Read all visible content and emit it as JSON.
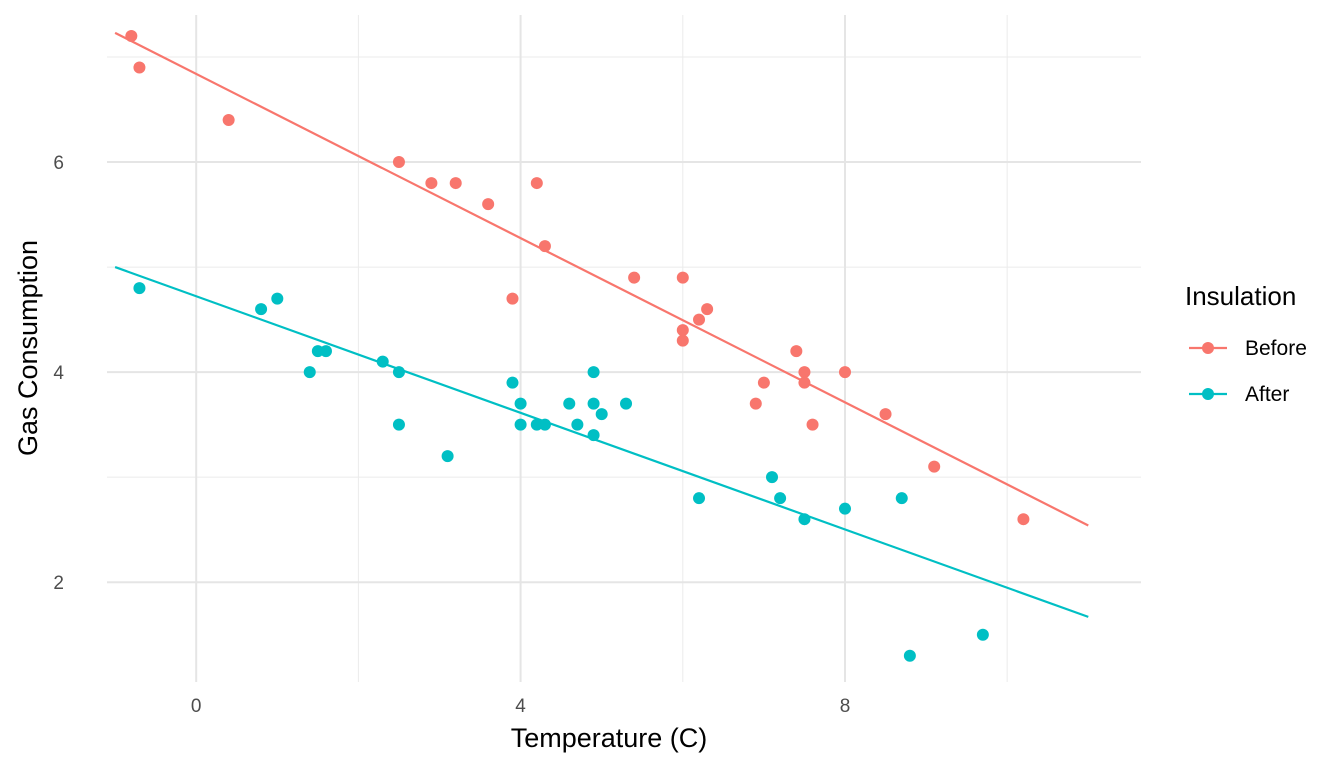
{
  "chart_data": {
    "type": "scatter",
    "xlabel": "Temperature (C)",
    "ylabel": "Gas Consumption",
    "xlim": [
      -1.1,
      11.65
    ],
    "ylim": [
      1.05,
      7.4
    ],
    "x_ticks": [
      0,
      4,
      8
    ],
    "x_tick_labels": [
      "0",
      "4",
      "8"
    ],
    "x_minor_ticks": [
      2,
      6,
      10
    ],
    "y_ticks": [
      2,
      4,
      6
    ],
    "y_tick_labels": [
      "2",
      "4",
      "6"
    ],
    "y_minor_ticks": [
      3,
      5,
      7
    ],
    "grid": true,
    "legend": {
      "title": "Insulation",
      "position": "right"
    },
    "series": [
      {
        "name": "Before",
        "color": "#F8766D",
        "points": [
          [
            -0.8,
            7.2
          ],
          [
            -0.7,
            6.9
          ],
          [
            0.4,
            6.4
          ],
          [
            2.5,
            6.0
          ],
          [
            2.9,
            5.8
          ],
          [
            3.2,
            5.8
          ],
          [
            3.6,
            5.6
          ],
          [
            3.9,
            4.7
          ],
          [
            4.2,
            5.8
          ],
          [
            4.3,
            5.2
          ],
          [
            5.4,
            4.9
          ],
          [
            6.0,
            4.9
          ],
          [
            6.0,
            4.3
          ],
          [
            6.0,
            4.4
          ],
          [
            6.2,
            4.5
          ],
          [
            6.3,
            4.6
          ],
          [
            6.9,
            3.7
          ],
          [
            7.0,
            3.9
          ],
          [
            7.4,
            4.2
          ],
          [
            7.5,
            4.0
          ],
          [
            7.5,
            3.9
          ],
          [
            7.6,
            3.5
          ],
          [
            8.0,
            4.0
          ],
          [
            8.5,
            3.6
          ],
          [
            9.1,
            3.1
          ],
          [
            10.2,
            2.6
          ]
        ],
        "fit": {
          "x": [
            -1.0,
            11.0
          ],
          "y": [
            7.23,
            2.54
          ]
        }
      },
      {
        "name": "After",
        "color": "#00BFC4",
        "points": [
          [
            -0.7,
            4.8
          ],
          [
            0.8,
            4.6
          ],
          [
            1.0,
            4.7
          ],
          [
            1.4,
            4.0
          ],
          [
            1.5,
            4.2
          ],
          [
            1.6,
            4.2
          ],
          [
            2.3,
            4.1
          ],
          [
            2.5,
            3.5
          ],
          [
            2.5,
            4.0
          ],
          [
            3.1,
            3.2
          ],
          [
            3.9,
            3.9
          ],
          [
            4.0,
            3.5
          ],
          [
            4.0,
            3.7
          ],
          [
            4.2,
            3.5
          ],
          [
            4.3,
            3.5
          ],
          [
            4.6,
            3.7
          ],
          [
            4.7,
            3.5
          ],
          [
            4.9,
            3.4
          ],
          [
            4.9,
            3.7
          ],
          [
            4.9,
            4.0
          ],
          [
            5.0,
            3.6
          ],
          [
            5.3,
            3.7
          ],
          [
            6.2,
            2.8
          ],
          [
            7.1,
            3.0
          ],
          [
            7.2,
            2.8
          ],
          [
            7.5,
            2.6
          ],
          [
            8.0,
            2.7
          ],
          [
            8.7,
            2.8
          ],
          [
            8.8,
            1.3
          ],
          [
            9.7,
            1.5
          ]
        ],
        "fit": {
          "x": [
            -1.0,
            11.0
          ],
          "y": [
            5.0,
            1.67
          ]
        }
      }
    ]
  }
}
